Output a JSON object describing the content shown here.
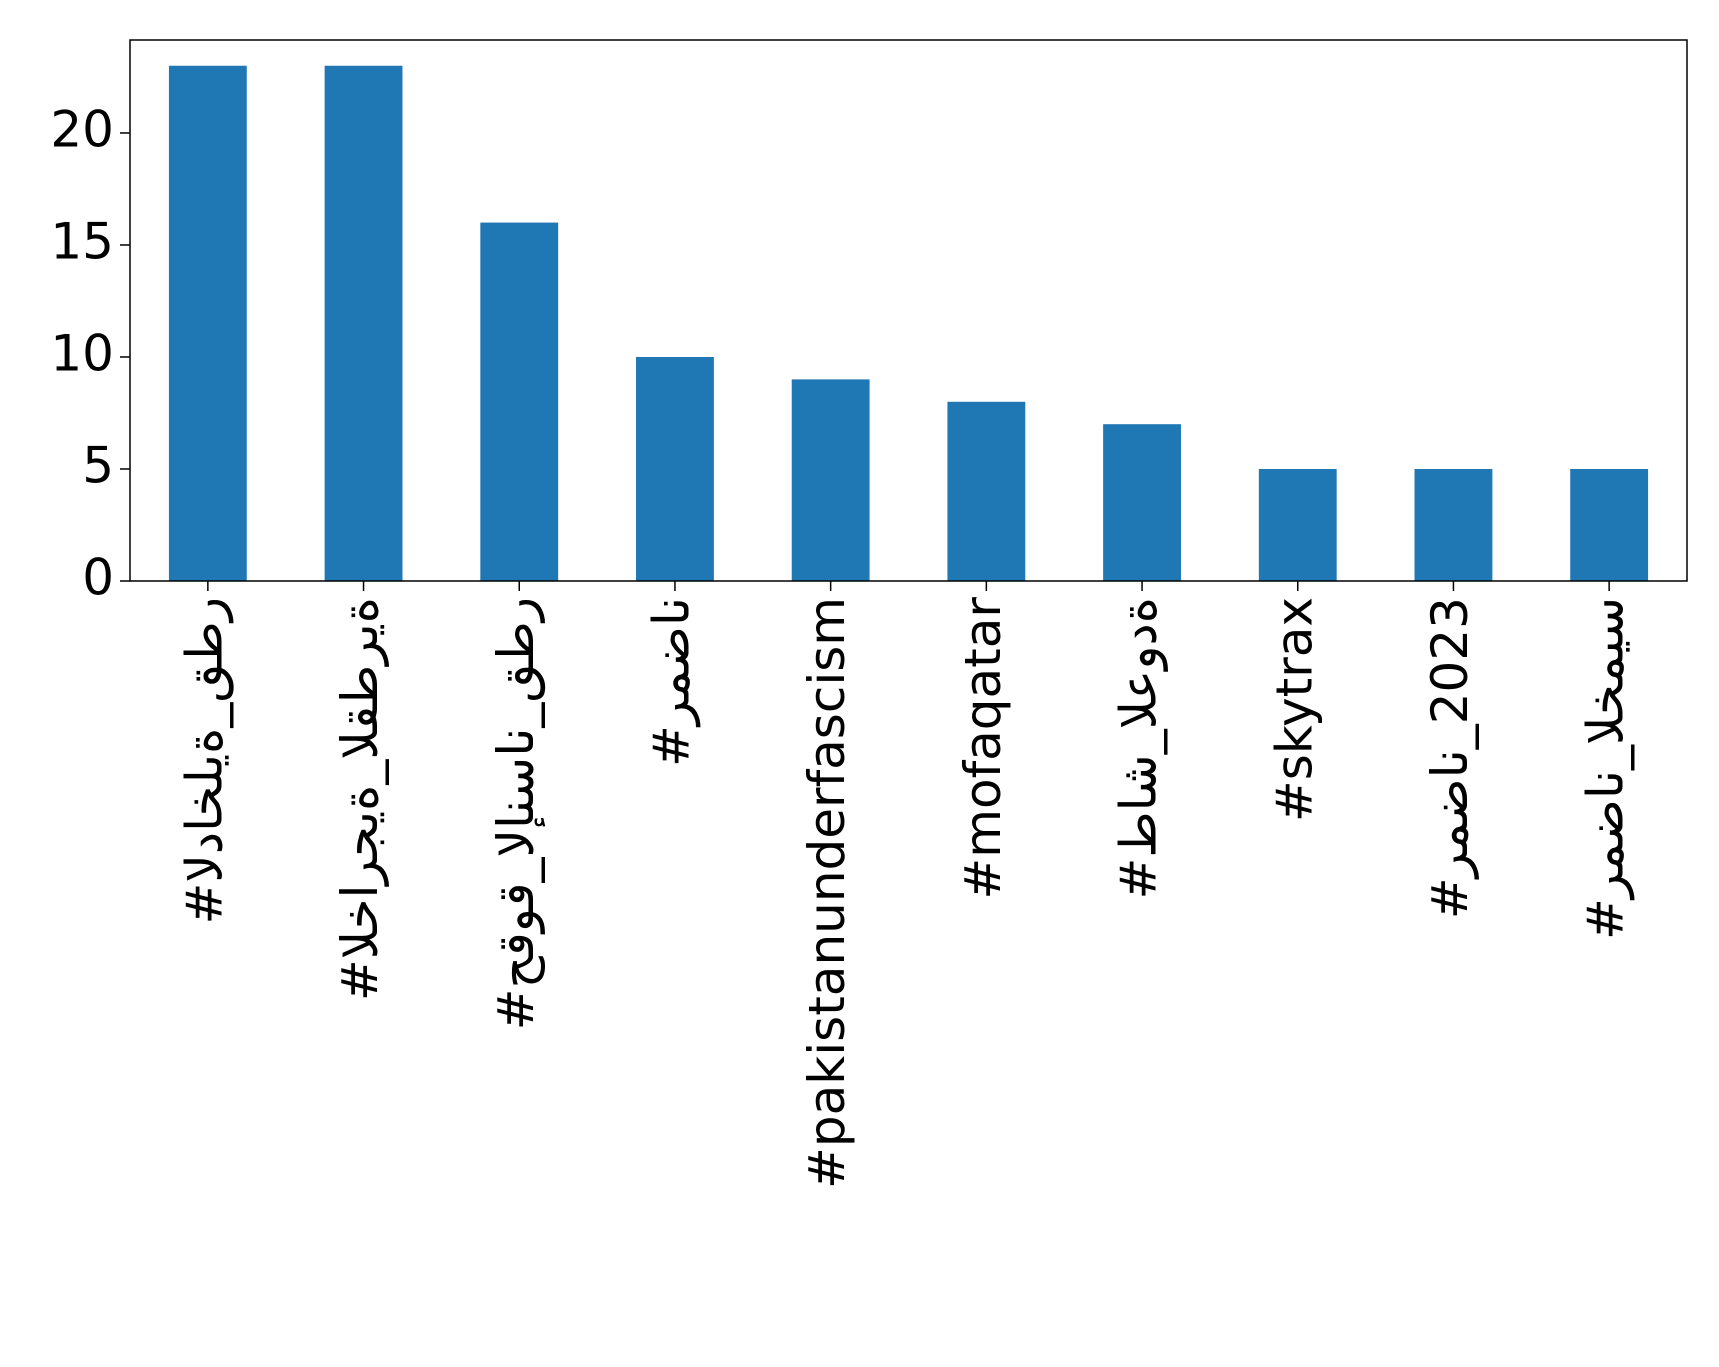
{
  "chart_data": {
    "type": "bar",
    "categories": [
      "#الداخلية_قطر",
      "#الخارجية_القطرية",
      "#حقوق_الإنسان_قطر",
      "#رمضان",
      "#pakistanunderfascism",
      "#mofaqatar",
      "#طاش_العودة",
      "#skytrax",
      "#رمضان_2023",
      "#رمضان_الخميس"
    ],
    "values": [
      23,
      23,
      16,
      10,
      9,
      8,
      7,
      5,
      5,
      5
    ],
    "color": "#1f77b4",
    "ylim": [
      0,
      24.15
    ],
    "yticks": [
      0,
      5,
      10,
      15,
      20
    ],
    "grid": false
  }
}
